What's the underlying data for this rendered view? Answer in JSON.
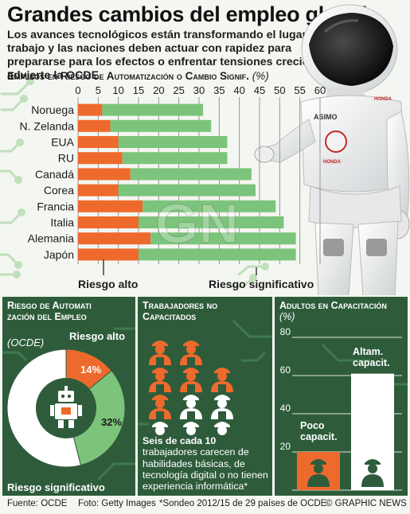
{
  "header": {
    "title": "Grandes cambios del empleo global",
    "intro": "Los avances tecnológicos están transformando el lugar de trabajo y las naciones deben actuar con rapidez para prepararse para los efectos o enfrentar tensiones crecientes, advierte la OCDE",
    "chart_heading": "Empleos en Riesgo de Automatización o Cambio Signif.",
    "chart_unit": "(%)"
  },
  "legend": {
    "high": "Riesgo alto",
    "significant": "Riesgo significativo"
  },
  "colors": {
    "orange": "#ee6a2c",
    "green": "#7cc47b",
    "dark_green": "#2e5c3b",
    "circuit": "#b9dcb4"
  },
  "watermark": "GRAPHIC NEWS",
  "chart_data": [
    {
      "type": "bar",
      "orientation": "horizontal",
      "stacked": true,
      "title": "Empleos en Riesgo de Automatización o Cambio Signif.",
      "categories": [
        "Noruega",
        "N. Zelanda",
        "EUA",
        "RU",
        "Canadá",
        "Corea",
        "Francia",
        "Italia",
        "Alemania",
        "Japón"
      ],
      "series": [
        {
          "name": "Riesgo alto",
          "values": [
            6,
            8,
            10,
            11,
            13,
            10,
            16,
            15,
            18,
            15
          ]
        },
        {
          "name": "Riesgo significativo",
          "values": [
            25,
            25,
            27,
            26,
            30,
            34,
            33,
            36,
            36,
            39
          ]
        }
      ],
      "xticks": [
        0,
        5,
        10,
        15,
        20,
        25,
        30,
        35,
        40,
        45,
        50,
        55,
        60
      ],
      "xlim": [
        0,
        60
      ]
    },
    {
      "type": "pie",
      "title": "Riesgo de Automatización del Empleo",
      "subtitle": "(OCDE)",
      "slices": [
        {
          "name": "Riesgo alto",
          "value": 14
        },
        {
          "name": "Riesgo significativo",
          "value": 32
        },
        {
          "name": "",
          "value": 54
        }
      ],
      "labels": [
        "14%",
        "32%"
      ]
    },
    {
      "type": "table",
      "title": "Trabajadores no Capacitados",
      "grid": {
        "rows": 4,
        "cols": 3,
        "highlighted": 6,
        "total": 10
      },
      "caption_bold": "Seis de cada 10",
      "caption": "trabajadores carecen de habilidades básicas, de tecnología digital o no tienen experiencia informática*"
    },
    {
      "type": "bar",
      "title": "Adultos en Capacitación",
      "unit": "(%)",
      "categories": [
        "Poco capacit.",
        "Altam. capacit."
      ],
      "values": [
        20,
        61
      ],
      "yticks": [
        0,
        20,
        40,
        60,
        80
      ],
      "ylim": [
        0,
        80
      ]
    }
  ],
  "panels": {
    "donut_title": "Riesgo de Automati zación del Empleo",
    "donut_sub": "(OCDE)",
    "donut_high": "Riesgo alto",
    "donut_sig": "Riesgo significativo",
    "workers_title": "Trabajadores no Capacitados",
    "workers_bold": "Seis de cada 10",
    "workers_text": "trabajadores carecen de habilidades básicas, de tecnología digital o no tienen experiencia informática*",
    "adults_title": "Adultos en Capacitación",
    "adults_unit": "(%)",
    "low_label": "Poco capacit.",
    "high_label": "Altam. capacit."
  },
  "robot": {
    "chest_label": "ASIMO",
    "brand": "HONDA"
  },
  "footer": {
    "source": "Fuente: OCDE",
    "photo": "Foto: Getty Images",
    "note": "*Sondeo 2012/15 de 29 países de OCDE",
    "credit": "© GRAPHIC NEWS"
  }
}
